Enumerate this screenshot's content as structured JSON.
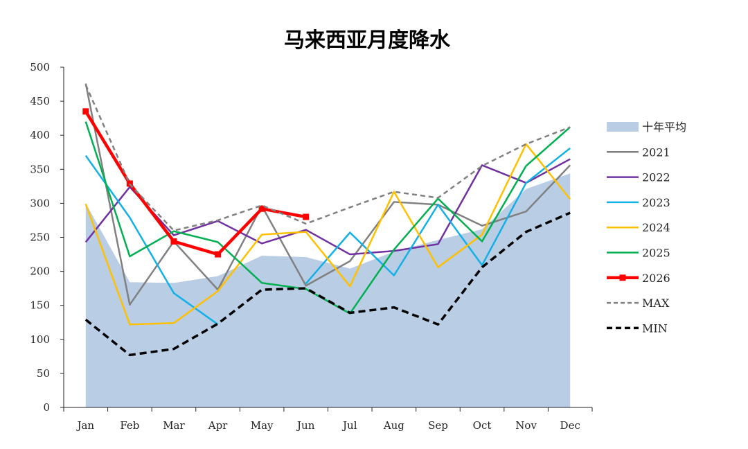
{
  "chart_data": {
    "type": "line",
    "title": "马来西亚月度降水",
    "categories": [
      "Jan",
      "Feb",
      "Mar",
      "Apr",
      "May",
      "Jun",
      "Jul",
      "Aug",
      "Sep",
      "Oct",
      "Nov",
      "Dec"
    ],
    "ylim": [
      0,
      500
    ],
    "yticks": [
      0,
      50,
      100,
      150,
      200,
      250,
      300,
      350,
      400,
      450,
      500
    ],
    "legend_position": "right",
    "grid": false,
    "area": {
      "name": "十年平均",
      "color": "#b9cde5",
      "values": [
        300,
        184,
        183,
        193,
        223,
        221,
        204,
        229,
        246,
        262,
        321,
        344
      ]
    },
    "series": [
      {
        "name": "2021",
        "color": "#808080",
        "style": "solid",
        "width": 2.5,
        "values": [
          476,
          151,
          244,
          173,
          296,
          179,
          215,
          302,
          298,
          267,
          288,
          356
        ]
      },
      {
        "name": "2022",
        "color": "#7030a0",
        "style": "solid",
        "width": 2.5,
        "values": [
          243,
          324,
          253,
          274,
          241,
          261,
          225,
          230,
          240,
          356,
          330,
          365
        ]
      },
      {
        "name": "2023",
        "color": "#13b0e6",
        "style": "solid",
        "width": 2.5,
        "values": [
          370,
          279,
          168,
          122,
          null,
          182,
          257,
          194,
          298,
          209,
          330,
          381
        ]
      },
      {
        "name": "2024",
        "color": "#ffc000",
        "style": "solid",
        "width": 2.5,
        "values": [
          299,
          122,
          124,
          171,
          254,
          258,
          178,
          317,
          206,
          254,
          387,
          306
        ]
      },
      {
        "name": "2025",
        "color": "#00b050",
        "style": "solid",
        "width": 2.5,
        "values": [
          420,
          222,
          259,
          243,
          183,
          174,
          138,
          232,
          307,
          244,
          355,
          412
        ]
      },
      {
        "name": "2026",
        "color": "#ff0000",
        "style": "solid",
        "width": 4.5,
        "markers": true,
        "values": [
          435,
          329,
          244,
          225,
          292,
          280,
          null,
          null,
          null,
          null,
          null,
          null
        ]
      },
      {
        "name": "MAX",
        "color": "#808080",
        "style": "dash",
        "width": 2.5,
        "values": [
          474,
          328,
          260,
          275,
          297,
          270,
          294,
          317,
          308,
          355,
          387,
          412
        ]
      },
      {
        "name": "MIN",
        "color": "#000000",
        "style": "dash",
        "width": 3.5,
        "values": [
          129,
          77,
          86,
          123,
          173,
          175,
          139,
          147,
          122,
          206,
          258,
          286
        ]
      }
    ]
  }
}
